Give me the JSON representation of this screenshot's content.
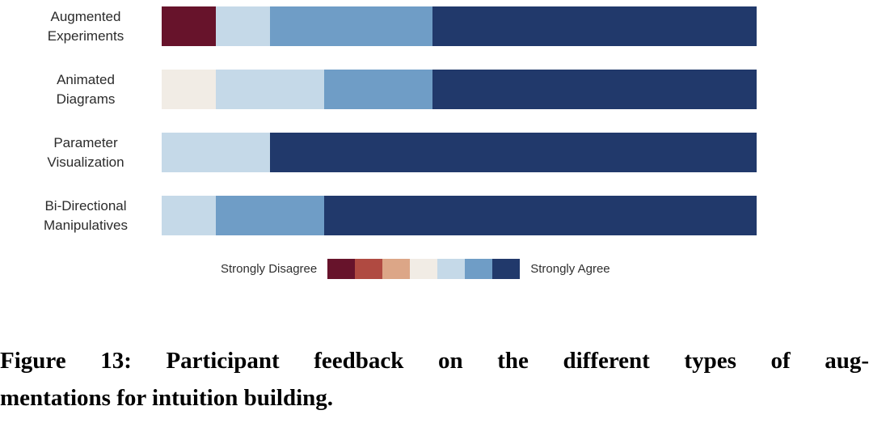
{
  "caption": {
    "line1": "Figure 13: Participant feedback on the different types of aug-",
    "line2": "mentations for intuition building."
  },
  "chart_data": {
    "type": "bar",
    "orientation": "horizontal",
    "stacked": true,
    "likert_points": 7,
    "legend": {
      "left_label": "Strongly Disagree",
      "right_label": "Strongly Agree"
    },
    "colors": [
      "#67132b",
      "#b04a41",
      "#dca687",
      "#f1ece5",
      "#c5d9e8",
      "#6f9dc6",
      "#21396b"
    ],
    "total_responses_per_row": 11,
    "categories": [
      "Augmented Experiments",
      "Animated Diagrams",
      "Parameter Visualization",
      "Bi-Directional Manipulatives"
    ],
    "rows": [
      {
        "label": "Augmented Experiments",
        "counts": [
          1,
          0,
          0,
          0,
          1,
          3,
          6
        ]
      },
      {
        "label": "Animated Diagrams",
        "counts": [
          0,
          0,
          0,
          1,
          2,
          2,
          6
        ]
      },
      {
        "label": "Parameter Visualization",
        "counts": [
          0,
          0,
          0,
          0,
          2,
          0,
          9
        ]
      },
      {
        "label": "Bi-Directional Manipulatives",
        "counts": [
          0,
          0,
          0,
          0,
          1,
          2,
          8
        ]
      }
    ],
    "grid": false,
    "axes_visible": false,
    "legend_position": "bottom-center"
  }
}
